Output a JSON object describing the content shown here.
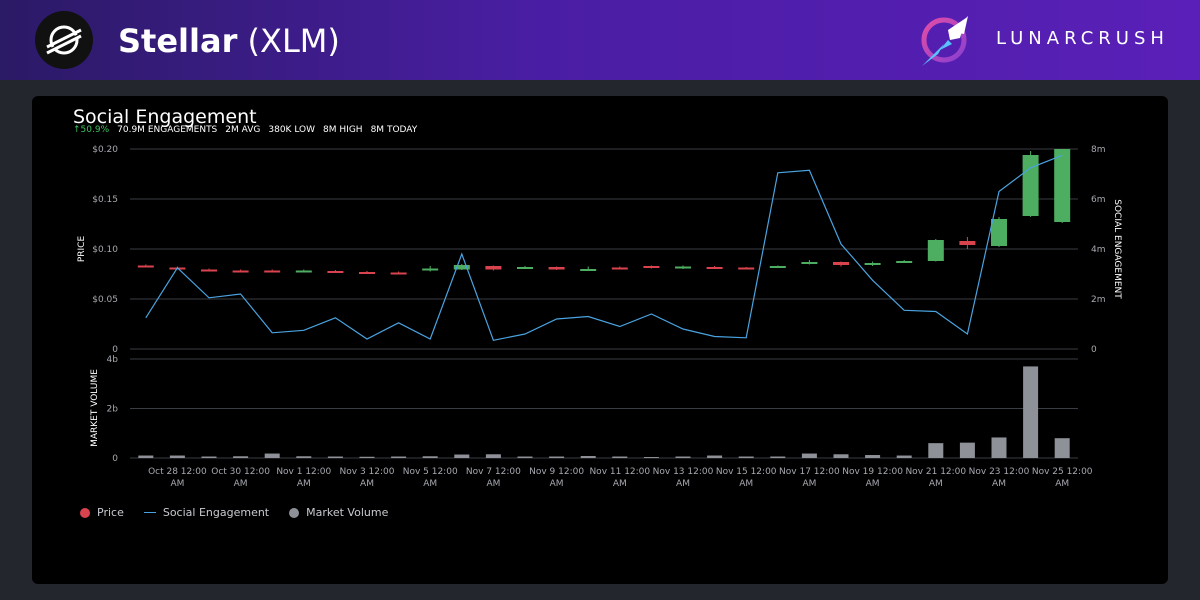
{
  "header": {
    "coin_name": "Stellar",
    "coin_symbol": "(XLM)",
    "brand": "LUNARCRUSH"
  },
  "panel": {
    "title": "Social Engagement",
    "stats": {
      "change": "50.9%",
      "engagements": "70.9M",
      "engagements_label": "ENGAGEMENTS",
      "avg": "2M",
      "avg_label": "AVG",
      "low": "380K",
      "low_label": "LOW",
      "high": "8M",
      "high_label": "HIGH",
      "today": "8M",
      "today_label": "TODAY"
    }
  },
  "legend": {
    "price": "Price",
    "social": "Social Engagement",
    "volume": "Market Volume"
  },
  "colors": {
    "up": "#4dae62",
    "down": "#d8434e",
    "line": "#4aa3e0",
    "volume": "#8e9197",
    "grid": "#3a3d44"
  },
  "chart_data": {
    "type": "candlestick+line+bar",
    "x_ticks": [
      [
        "Oct 28 12:00",
        "AM"
      ],
      [
        "Oct 30 12:00",
        "AM"
      ],
      [
        "Nov 1 12:00",
        "AM"
      ],
      [
        "Nov 3 12:00",
        "AM"
      ],
      [
        "Nov 5 12:00",
        "AM"
      ],
      [
        "Nov 7 12:00",
        "AM"
      ],
      [
        "Nov 9 12:00",
        "AM"
      ],
      [
        "Nov 11 12:00",
        "AM"
      ],
      [
        "Nov 13 12:00",
        "AM"
      ],
      [
        "Nov 15 12:00",
        "AM"
      ],
      [
        "Nov 17 12:00",
        "AM"
      ],
      [
        "Nov 19 12:00",
        "AM"
      ],
      [
        "Nov 21 12:00",
        "AM"
      ],
      [
        "Nov 23 12:00",
        "AM"
      ],
      [
        "Nov 25 12:00",
        "AM"
      ]
    ],
    "price_axis": {
      "label": "PRICE",
      "ticks": [
        "0",
        "$0.05",
        "$0.10",
        "$0.15",
        "$0.20"
      ],
      "ylim": [
        0,
        0.2
      ]
    },
    "social_axis": {
      "label": "SOCIAL ENGAGEMENT",
      "ticks": [
        "0",
        "2m",
        "4m",
        "6m",
        "8m"
      ],
      "ylim": [
        0,
        8
      ]
    },
    "volume_axis": {
      "label": "MARKET VOLUME",
      "ticks": [
        "0",
        "2b",
        "4b"
      ],
      "ylim": [
        0,
        4
      ]
    },
    "candles": [
      [
        0.0835,
        0.082,
        0.0845,
        0.0815
      ],
      [
        0.0815,
        0.08,
        0.0825,
        0.0795
      ],
      [
        0.0795,
        0.078,
        0.0805,
        0.0775
      ],
      [
        0.0785,
        0.0775,
        0.0795,
        0.077
      ],
      [
        0.0785,
        0.078,
        0.0795,
        0.0775
      ],
      [
        0.078,
        0.0785,
        0.0795,
        0.0775
      ],
      [
        0.078,
        0.0765,
        0.079,
        0.076
      ],
      [
        0.077,
        0.076,
        0.078,
        0.0755
      ],
      [
        0.0765,
        0.0755,
        0.0775,
        0.075
      ],
      [
        0.079,
        0.0805,
        0.083,
        0.0775
      ],
      [
        0.0795,
        0.084,
        0.085,
        0.079
      ],
      [
        0.083,
        0.0795,
        0.0835,
        0.0785
      ],
      [
        0.0815,
        0.082,
        0.083,
        0.0805
      ],
      [
        0.082,
        0.0795,
        0.0825,
        0.079
      ],
      [
        0.0795,
        0.08,
        0.0825,
        0.079
      ],
      [
        0.0815,
        0.0805,
        0.0825,
        0.08
      ],
      [
        0.083,
        0.081,
        0.0835,
        0.0805
      ],
      [
        0.0805,
        0.0825,
        0.0835,
        0.08
      ],
      [
        0.082,
        0.0815,
        0.083,
        0.081
      ],
      [
        0.0815,
        0.0805,
        0.082,
        0.08
      ],
      [
        0.082,
        0.083,
        0.0835,
        0.0815
      ],
      [
        0.085,
        0.087,
        0.089,
        0.0845
      ],
      [
        0.087,
        0.084,
        0.0875,
        0.0825
      ],
      [
        0.084,
        0.086,
        0.0875,
        0.083
      ],
      [
        0.0865,
        0.088,
        0.089,
        0.086
      ],
      [
        0.088,
        0.109,
        0.11,
        0.0875
      ],
      [
        0.108,
        0.104,
        0.112,
        0.1
      ],
      [
        0.103,
        0.13,
        0.132,
        0.102
      ],
      [
        0.133,
        0.194,
        0.198,
        0.132
      ],
      [
        0.127,
        0.2,
        0.2,
        0.126
      ]
    ],
    "social": [
      1.25,
      3.25,
      2.05,
      2.2,
      0.65,
      0.75,
      1.25,
      0.4,
      1.05,
      0.4,
      3.8,
      0.35,
      0.6,
      1.2,
      1.3,
      0.9,
      1.4,
      0.8,
      0.5,
      0.45,
      7.05,
      7.15,
      4.2,
      2.75,
      1.55,
      1.5,
      0.6,
      6.3,
      7.25,
      7.75
    ],
    "volume": [
      0.1,
      0.1,
      0.06,
      0.07,
      0.18,
      0.07,
      0.06,
      0.05,
      0.06,
      0.07,
      0.14,
      0.15,
      0.06,
      0.06,
      0.08,
      0.06,
      0.04,
      0.06,
      0.1,
      0.06,
      0.06,
      0.18,
      0.15,
      0.12,
      0.1,
      0.6,
      0.62,
      0.83,
      3.7,
      0.8
    ]
  }
}
